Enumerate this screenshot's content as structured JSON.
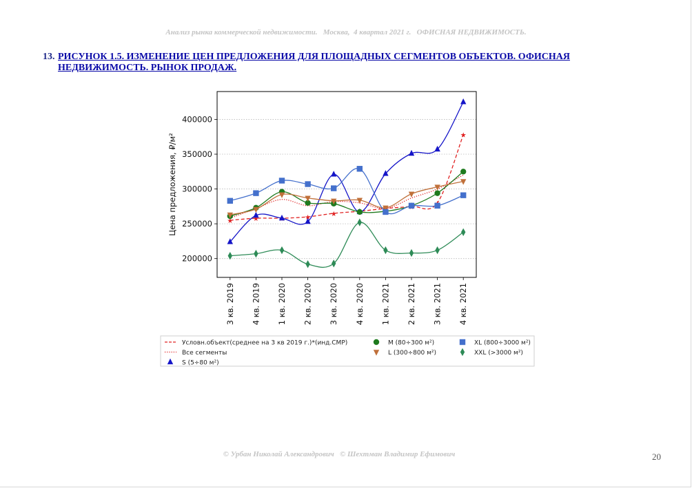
{
  "header": {
    "text": "Анализ рынка коммерческой недвижимости.   Москва,  4 квартал 2021 г.   ОФИСНАЯ НЕДВИЖИМОСТЬ."
  },
  "caption": {
    "number": "13.",
    "text": "РИСУНОК 1.5. ИЗМЕНЕНИЕ ЦЕН ПРЕДЛОЖЕНИЯ ДЛЯ ПЛОЩАДНЫХ СЕГМЕНТОВ ОБЪЕКТОВ. ОФИСНАЯ НЕДВИЖИМОСТЬ. РЫНОК ПРОДАЖ."
  },
  "footer": {
    "authors": "© Урбан Николай Александрович   © Шехтман Владимир Ефимович",
    "page_number": "20"
  },
  "chart_data": {
    "type": "line",
    "ylabel": "Цена предложения, ₽/м²",
    "xlabel": "",
    "categories": [
      "3 кв. 2019",
      "4 кв. 2019",
      "1 кв. 2020",
      "2 кв. 2020",
      "3 кв. 2020",
      "4 кв. 2020",
      "1 кв. 2021",
      "2 кв. 2021",
      "3 кв. 2021",
      "4 кв. 2021"
    ],
    "ylim": [
      173000,
      440000
    ],
    "yticks": [
      200000,
      250000,
      300000,
      350000,
      400000
    ],
    "grid": "horizontal dotted",
    "legend_position": "below",
    "series": [
      {
        "name": "Условн.объект(среднее на 3 кв 2019 г.)*(инд.СМР)",
        "color": "#e02020",
        "style": "dashed",
        "marker": "star",
        "values": [
          255000,
          258000,
          258000,
          260000,
          265000,
          268000,
          272000,
          275000,
          280000,
          378000
        ]
      },
      {
        "name": "Все сегменты",
        "color": "#e02020",
        "style": "dotted",
        "marker": "none",
        "values": [
          258000,
          272000,
          285000,
          276000,
          282000,
          280000,
          272000,
          287000,
          300000,
          320000
        ]
      },
      {
        "name": "S (5÷80 м²)",
        "color": "#1515c8",
        "style": "solid",
        "marker": "triangle",
        "values": [
          224000,
          262000,
          258000,
          253000,
          321000,
          267000,
          322000,
          351000,
          357000,
          425000
        ]
      },
      {
        "name": "M (80÷300 м²)",
        "color": "#1e7a1e",
        "style": "solid",
        "marker": "circle",
        "values": [
          261000,
          273000,
          296000,
          280000,
          279000,
          267000,
          268000,
          276000,
          294000,
          325000
        ]
      },
      {
        "name": "L (300÷800 м²)",
        "color": "#c0703a",
        "style": "solid",
        "marker": "triangle-down",
        "values": [
          263000,
          271000,
          292000,
          287000,
          283000,
          284000,
          273000,
          293000,
          303000,
          311000
        ]
      },
      {
        "name": "XL (800÷3000 м²)",
        "color": "#4470cc",
        "style": "solid",
        "marker": "square",
        "values": [
          283000,
          294000,
          312000,
          307000,
          301000,
          329000,
          267000,
          276000,
          276000,
          291000
        ]
      },
      {
        "name": "XXL (>3000 м²)",
        "color": "#2e8b57",
        "style": "solid",
        "marker": "diamond",
        "values": [
          204000,
          207000,
          212000,
          192000,
          193000,
          252000,
          212000,
          208000,
          212000,
          238000
        ]
      }
    ]
  }
}
